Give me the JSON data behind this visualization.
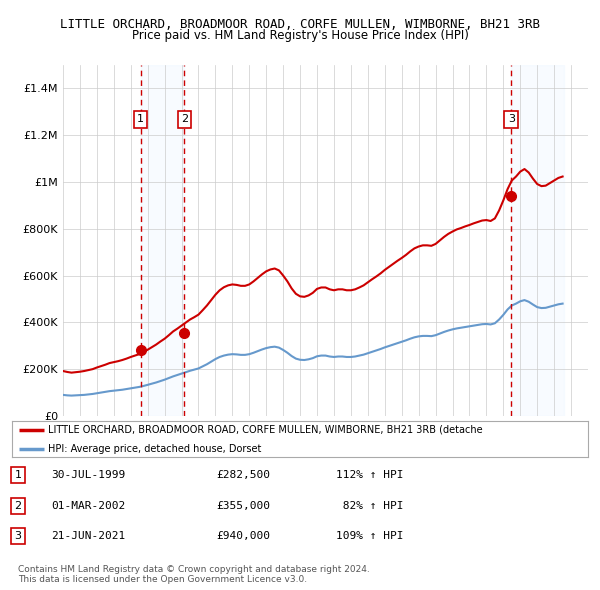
{
  "title": "LITTLE ORCHARD, BROADMOOR ROAD, CORFE MULLEN, WIMBORNE, BH21 3RB",
  "subtitle": "Price paid vs. HM Land Registry's House Price Index (HPI)",
  "background_color": "#ffffff",
  "grid_color": "#cccccc",
  "ylim": [
    0,
    1500000
  ],
  "yticks": [
    0,
    200000,
    400000,
    600000,
    800000,
    1000000,
    1200000,
    1400000
  ],
  "ytick_labels": [
    "£0",
    "£200K",
    "£400K",
    "£600K",
    "£800K",
    "£1M",
    "£1.2M",
    "£1.4M"
  ],
  "xlim_start": 1995.0,
  "xlim_end": 2026.0,
  "sale_dates": [
    1999.58,
    2002.17,
    2021.47
  ],
  "sale_prices": [
    282500,
    355000,
    940000
  ],
  "sale_labels": [
    "1",
    "2",
    "3"
  ],
  "red_line_color": "#cc0000",
  "blue_line_color": "#6699cc",
  "shade_color": "#ddeeff",
  "dashed_line_color": "#cc0000",
  "legend_label_red": "LITTLE ORCHARD, BROADMOOR ROAD, CORFE MULLEN, WIMBORNE, BH21 3RB (detache",
  "legend_label_blue": "HPI: Average price, detached house, Dorset",
  "table_rows": [
    [
      "1",
      "30-JUL-1999",
      "£282,500",
      "112% ↑ HPI"
    ],
    [
      "2",
      "01-MAR-2002",
      "£355,000",
      " 82% ↑ HPI"
    ],
    [
      "3",
      "21-JUN-2021",
      "£940,000",
      "109% ↑ HPI"
    ]
  ],
  "footnote": "Contains HM Land Registry data © Crown copyright and database right 2024.\nThis data is licensed under the Open Government Licence v3.0.",
  "hpi_years": [
    1995.0,
    1995.25,
    1995.5,
    1995.75,
    1996.0,
    1996.25,
    1996.5,
    1996.75,
    1997.0,
    1997.25,
    1997.5,
    1997.75,
    1998.0,
    1998.25,
    1998.5,
    1998.75,
    1999.0,
    1999.25,
    1999.5,
    1999.75,
    2000.0,
    2000.25,
    2000.5,
    2000.75,
    2001.0,
    2001.25,
    2001.5,
    2001.75,
    2002.0,
    2002.25,
    2002.5,
    2002.75,
    2003.0,
    2003.25,
    2003.5,
    2003.75,
    2004.0,
    2004.25,
    2004.5,
    2004.75,
    2005.0,
    2005.25,
    2005.5,
    2005.75,
    2006.0,
    2006.25,
    2006.5,
    2006.75,
    2007.0,
    2007.25,
    2007.5,
    2007.75,
    2008.0,
    2008.25,
    2008.5,
    2008.75,
    2009.0,
    2009.25,
    2009.5,
    2009.75,
    2010.0,
    2010.25,
    2010.5,
    2010.75,
    2011.0,
    2011.25,
    2011.5,
    2011.75,
    2012.0,
    2012.25,
    2012.5,
    2012.75,
    2013.0,
    2013.25,
    2013.5,
    2013.75,
    2014.0,
    2014.25,
    2014.5,
    2014.75,
    2015.0,
    2015.25,
    2015.5,
    2015.75,
    2016.0,
    2016.25,
    2016.5,
    2016.75,
    2017.0,
    2017.25,
    2017.5,
    2017.75,
    2018.0,
    2018.25,
    2018.5,
    2018.75,
    2019.0,
    2019.25,
    2019.5,
    2019.75,
    2020.0,
    2020.25,
    2020.5,
    2020.75,
    2021.0,
    2021.25,
    2021.5,
    2021.75,
    2022.0,
    2022.25,
    2022.5,
    2022.75,
    2023.0,
    2023.25,
    2023.5,
    2023.75,
    2024.0,
    2024.25,
    2024.5
  ],
  "hpi_values": [
    90000,
    88000,
    87000,
    88000,
    89000,
    90000,
    92000,
    94000,
    97000,
    100000,
    103000,
    106000,
    108000,
    110000,
    112000,
    115000,
    118000,
    121000,
    124000,
    128000,
    133000,
    138000,
    143000,
    149000,
    155000,
    162000,
    169000,
    175000,
    181000,
    187000,
    193000,
    198000,
    203000,
    212000,
    221000,
    232000,
    243000,
    252000,
    258000,
    262000,
    264000,
    263000,
    261000,
    261000,
    264000,
    270000,
    277000,
    284000,
    290000,
    294000,
    296000,
    292000,
    282000,
    270000,
    256000,
    245000,
    240000,
    239000,
    242000,
    247000,
    255000,
    258000,
    258000,
    254000,
    252000,
    254000,
    254000,
    252000,
    252000,
    254000,
    258000,
    262000,
    268000,
    274000,
    280000,
    286000,
    293000,
    299000,
    305000,
    311000,
    317000,
    323000,
    330000,
    336000,
    340000,
    342000,
    342000,
    341000,
    345000,
    352000,
    359000,
    365000,
    370000,
    374000,
    377000,
    380000,
    383000,
    386000,
    389000,
    392000,
    393000,
    391000,
    396000,
    412000,
    432000,
    455000,
    472000,
    480000,
    490000,
    495000,
    488000,
    476000,
    465000,
    461000,
    462000,
    467000,
    472000,
    477000,
    480000
  ],
  "red_hpi_values": [
    192000,
    188000,
    185000,
    187000,
    189000,
    192000,
    196000,
    200000,
    207000,
    213000,
    219000,
    226000,
    230000,
    234000,
    239000,
    245000,
    252000,
    258000,
    264000,
    273000,
    283000,
    294000,
    305000,
    318000,
    330000,
    345000,
    361000,
    373000,
    386000,
    399000,
    412000,
    422000,
    433000,
    452000,
    472000,
    495000,
    518000,
    537000,
    550000,
    558000,
    562000,
    560000,
    556000,
    556000,
    562000,
    575000,
    590000,
    605000,
    618000,
    626000,
    630000,
    622000,
    600000,
    575000,
    545000,
    522000,
    511000,
    509000,
    515000,
    526000,
    543000,
    549000,
    549000,
    541000,
    537000,
    541000,
    541000,
    537000,
    537000,
    541000,
    549000,
    558000,
    571000,
    584000,
    596000,
    609000,
    624000,
    637000,
    650000,
    663000,
    675000,
    688000,
    703000,
    716000,
    724000,
    729000,
    729000,
    727000,
    735000,
    750000,
    765000,
    778000,
    788000,
    797000,
    803000,
    810000,
    816000,
    823000,
    829000,
    835000,
    837000,
    833000,
    844000,
    878000,
    921000,
    969000,
    1006000,
    1023000,
    1044000,
    1055000,
    1040000,
    1014000,
    991000,
    982000,
    984000,
    995000,
    1006000,
    1017000,
    1023000
  ]
}
